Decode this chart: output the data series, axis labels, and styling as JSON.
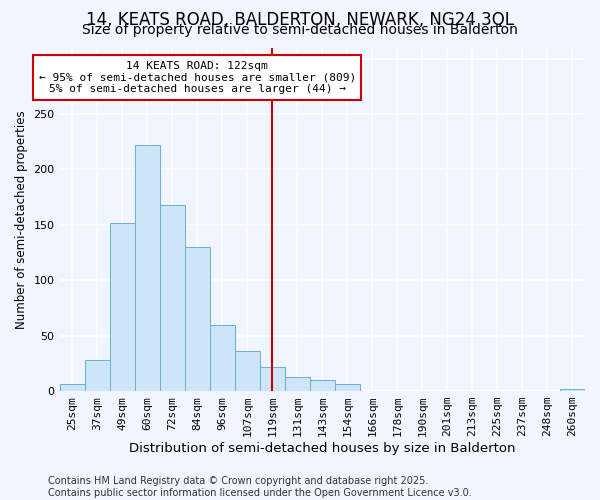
{
  "title1": "14, KEATS ROAD, BALDERTON, NEWARK, NG24 3QL",
  "title2": "Size of property relative to semi-detached houses in Balderton",
  "xlabel": "Distribution of semi-detached houses by size in Balderton",
  "ylabel": "Number of semi-detached properties",
  "categories": [
    "25sqm",
    "37sqm",
    "49sqm",
    "60sqm",
    "72sqm",
    "84sqm",
    "96sqm",
    "107sqm",
    "119sqm",
    "131sqm",
    "143sqm",
    "154sqm",
    "166sqm",
    "178sqm",
    "190sqm",
    "201sqm",
    "213sqm",
    "225sqm",
    "237sqm",
    "248sqm",
    "260sqm"
  ],
  "values": [
    6,
    28,
    152,
    222,
    168,
    130,
    60,
    36,
    22,
    13,
    10,
    6,
    0,
    0,
    0,
    0,
    0,
    0,
    0,
    0,
    2
  ],
  "bar_color": "#cce5f7",
  "bar_edge_color": "#6aafd6",
  "vline_x": 8,
  "vline_color": "#cc0000",
  "annotation_text": "14 KEATS ROAD: 122sqm\n← 95% of semi-detached houses are smaller (809)\n5% of semi-detached houses are larger (44) →",
  "annotation_box_color": "#ffffff",
  "annotation_box_edge": "#cc0000",
  "footer_text": "Contains HM Land Registry data © Crown copyright and database right 2025.\nContains public sector information licensed under the Open Government Licence v3.0.",
  "ylim": [
    0,
    310
  ],
  "background_color": "#f0f5ff",
  "grid_color": "#ffffff",
  "title1_fontsize": 12,
  "title2_fontsize": 10,
  "xlabel_fontsize": 9.5,
  "ylabel_fontsize": 8.5,
  "tick_fontsize": 8,
  "annotation_fontsize": 8,
  "footer_fontsize": 7
}
